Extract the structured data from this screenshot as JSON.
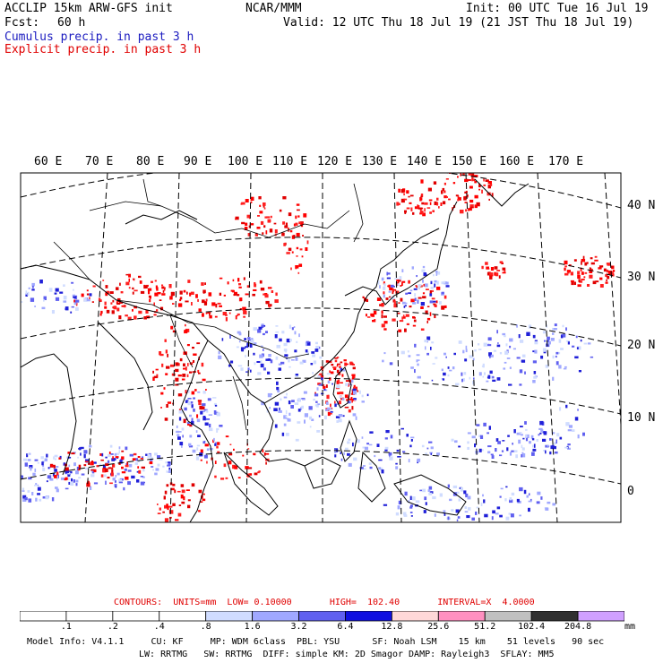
{
  "header": {
    "model": "ACCLIP 15km ARW-GFS init",
    "center": "NCAR/MMM",
    "init": "Init: 00 UTC Tue 16 Jul 19",
    "fcst_label": "Fcst:",
    "fcst_value": "60 h",
    "valid": "Valid: 12 UTC Thu 18 Jul 19 (21 JST Thu 18 Jul 19)"
  },
  "legend": {
    "cumulus": "Cumulus precip. in past 3 h",
    "explicit": "Explicit precip. in past 3 h",
    "cumulus_color": "#2a2ad0",
    "explicit_color": "#e00000"
  },
  "map": {
    "lon_labels": [
      "60 E",
      "70 E",
      "80 E",
      "90 E",
      "100 E",
      "110 E",
      "120 E",
      "130 E",
      "140 E",
      "150 E",
      "160 E",
      "170 E"
    ],
    "lat_labels": [
      "40 N",
      "30 N",
      "20 N",
      "10 N",
      "0"
    ]
  },
  "contours": {
    "text": "CONTOURS:  UNITS=mm  LOW= 0.10000       HIGH=  102.40       INTERVAL=X  4.0000"
  },
  "colorbar": {
    "ticks": [
      ".1",
      ".2",
      ".4",
      ".8",
      "1.6",
      "3.2",
      "6.4",
      "12.8",
      "25.6",
      "51.2",
      "102.4",
      "204.8"
    ],
    "unit": "mm",
    "colors": [
      "#ffffff",
      "#ffffff",
      "#ffffff",
      "#ffffff",
      "#d0dcff",
      "#a0a8ff",
      "#6060f0",
      "#1010e0",
      "#ffd8d8",
      "#ff90c0",
      "#c0c0c0",
      "#303030",
      "#d0a0ff"
    ]
  },
  "footer": {
    "line1": "Model Info: V4.1.1     CU: KF     MP: WDM 6class  PBL: YSU      SF: Noah LSM    15 km    51 levels   90 sec",
    "line2": "LW: RRTMG   SW: RRTMG  DIFF: simple KM: 2D Smagor DAMP: Rayleigh3  SFLAY: MM5"
  }
}
